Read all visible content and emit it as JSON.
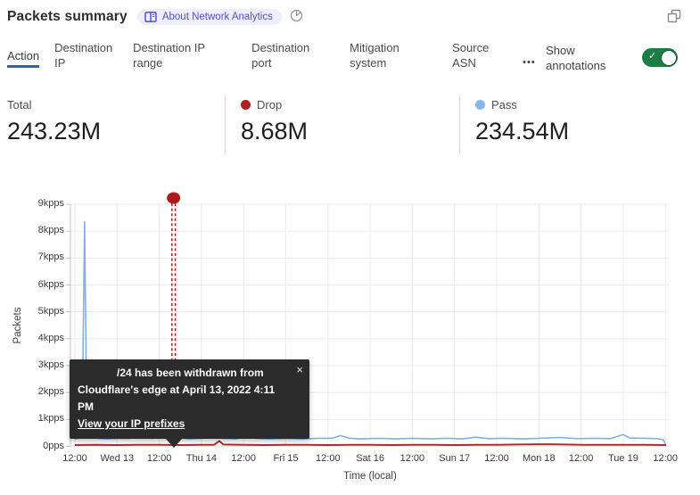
{
  "header": {
    "title": "Packets summary",
    "badge": {
      "icon": "book-icon",
      "label": "About Network Analytics"
    },
    "time_icon": "pie-clock-icon",
    "popout_icon": "popout-icon"
  },
  "tabs": {
    "items": [
      {
        "label": "Action",
        "active": true
      },
      {
        "label": "Destination IP",
        "active": false
      },
      {
        "label": "Destination IP range",
        "active": false
      },
      {
        "label": "Destination port",
        "active": false
      },
      {
        "label": "Mitigation system",
        "active": false
      },
      {
        "label": "Source ASN",
        "active": false
      }
    ],
    "more_label": "●●●",
    "annotations_label": "Show annotations",
    "toggle_on": true,
    "toggle_check": "✓",
    "active_underline_color": "#2368a8",
    "toggle_color": "#1e7d45"
  },
  "stats": {
    "total": {
      "label": "Total",
      "value": "243.23M"
    },
    "drop": {
      "label": "Drop",
      "value": "8.68M",
      "color": "#b01f24"
    },
    "pass": {
      "label": "Pass",
      "value": "234.54M",
      "color": "#8ab6ea"
    }
  },
  "tooltip": {
    "line1": "/24 has been withdrawn from",
    "line2": "Cloudflare's edge at April 13, 2022 4:11 PM",
    "link": "View your IP prefixes",
    "close": "×"
  },
  "chart_data": {
    "type": "line",
    "title": "Packets summary",
    "xlabel": "Time (local)",
    "ylabel": "Packets",
    "x_tick_labels": [
      "12:00",
      "Wed 13",
      "12:00",
      "Thu 14",
      "12:00",
      "Fri 15",
      "12:00",
      "Sat 16",
      "12:00",
      "Sun 17",
      "12:00",
      "Mon 18",
      "12:00",
      "Tue 19",
      "12:00"
    ],
    "x_unit": "each tick = 12 hours",
    "y_tick_labels": [
      "0pps",
      "1kpps",
      "2kpps",
      "3kpps",
      "4kpps",
      "5kpps",
      "6kpps",
      "7kpps",
      "8kpps",
      "9kpps"
    ],
    "ylim": [
      0,
      9
    ],
    "y_unit": "kpps",
    "grid": true,
    "legend_position": "in stats header (Drop red, Pass blue)",
    "series": [
      {
        "name": "Drop",
        "color": "#ab2f26",
        "width": 2,
        "points": [
          [
            0,
            0.05
          ],
          [
            0.5,
            0.06
          ],
          [
            1.0,
            0.05
          ],
          [
            1.5,
            0.06
          ],
          [
            2.0,
            0.06
          ],
          [
            2.5,
            0.05
          ],
          [
            3.0,
            0.06
          ],
          [
            3.3,
            0.06
          ],
          [
            3.42,
            0.2
          ],
          [
            3.52,
            0.07
          ],
          [
            4.0,
            0.06
          ],
          [
            4.5,
            0.05
          ],
          [
            5.0,
            0.06
          ],
          [
            5.5,
            0.06
          ],
          [
            6.0,
            0.05
          ],
          [
            6.5,
            0.06
          ],
          [
            7.0,
            0.06
          ],
          [
            7.5,
            0.05
          ],
          [
            8.0,
            0.06
          ],
          [
            8.5,
            0.06
          ],
          [
            9.0,
            0.05
          ],
          [
            9.5,
            0.06
          ],
          [
            10.0,
            0.06
          ],
          [
            10.5,
            0.07
          ],
          [
            11.0,
            0.08
          ],
          [
            11.3,
            0.08
          ],
          [
            11.6,
            0.07
          ],
          [
            12.0,
            0.06
          ],
          [
            12.5,
            0.06
          ],
          [
            13.0,
            0.06
          ],
          [
            13.5,
            0.06
          ],
          [
            14.02,
            0.05
          ]
        ]
      },
      {
        "name": "Pass",
        "color": "#7fb0ea",
        "width": 1.6,
        "points": [
          [
            0,
            0.28
          ],
          [
            0.08,
            0.3
          ],
          [
            0.14,
            0.33
          ],
          [
            0.17,
            0.5
          ],
          [
            0.23,
            8.35
          ],
          [
            0.28,
            1.2
          ],
          [
            0.33,
            0.55
          ],
          [
            0.42,
            0.38
          ],
          [
            0.55,
            0.3
          ],
          [
            0.75,
            0.28
          ],
          [
            1.0,
            0.3
          ],
          [
            1.3,
            0.3
          ],
          [
            1.5,
            0.45
          ],
          [
            1.65,
            0.32
          ],
          [
            1.85,
            0.3
          ],
          [
            2.05,
            0.48
          ],
          [
            2.2,
            0.36
          ],
          [
            2.34,
            0.44
          ],
          [
            2.5,
            0.32
          ],
          [
            2.7,
            0.28
          ],
          [
            3.0,
            0.3
          ],
          [
            3.3,
            0.34
          ],
          [
            3.5,
            0.3
          ],
          [
            3.8,
            0.28
          ],
          [
            4.1,
            0.36
          ],
          [
            4.3,
            0.3
          ],
          [
            4.6,
            0.28
          ],
          [
            5.0,
            0.3
          ],
          [
            5.4,
            0.28
          ],
          [
            5.8,
            0.3
          ],
          [
            6.1,
            0.3
          ],
          [
            6.3,
            0.4
          ],
          [
            6.5,
            0.3
          ],
          [
            6.8,
            0.28
          ],
          [
            7.2,
            0.3
          ],
          [
            7.6,
            0.28
          ],
          [
            8.0,
            0.3
          ],
          [
            8.4,
            0.28
          ],
          [
            8.8,
            0.3
          ],
          [
            9.2,
            0.28
          ],
          [
            9.5,
            0.34
          ],
          [
            9.8,
            0.29
          ],
          [
            10.2,
            0.3
          ],
          [
            10.6,
            0.28
          ],
          [
            11.0,
            0.3
          ],
          [
            11.5,
            0.33
          ],
          [
            11.9,
            0.29
          ],
          [
            12.3,
            0.3
          ],
          [
            12.7,
            0.29
          ],
          [
            13.0,
            0.44
          ],
          [
            13.15,
            0.31
          ],
          [
            13.5,
            0.3
          ],
          [
            13.8,
            0.29
          ],
          [
            13.95,
            0.25
          ],
          [
            14.0,
            0.08
          ]
        ]
      }
    ],
    "annotation": {
      "t": 2.34,
      "time": "April 13, 2022 4:11 PM",
      "color": "#a81c1c",
      "style": "double dashed vertical line with dot marker above plot",
      "text": "/24 has been withdrawn from Cloudflare's edge at April 13, 2022 4:11 PM"
    }
  }
}
